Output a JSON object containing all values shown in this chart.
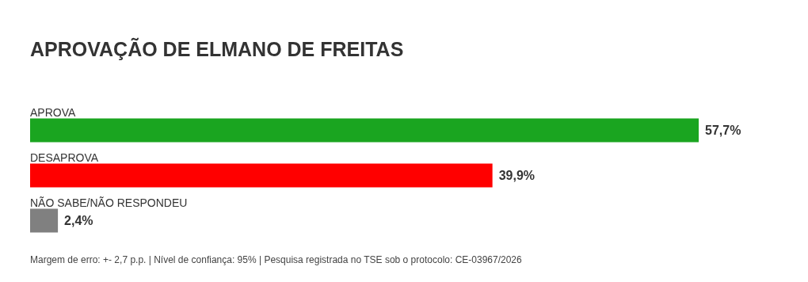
{
  "chart_data": {
    "type": "bar",
    "orientation": "horizontal",
    "title": "APROVAÇÃO DE ELMANO DE FREITAS",
    "categories": [
      "APROVA",
      "DESAPROVA",
      "NÃO SABE/NÃO RESPONDEU"
    ],
    "values": [
      57.7,
      39.9,
      2.4
    ],
    "colors": [
      "#1aa520",
      "#ff0000",
      "#808080"
    ],
    "value_labels": [
      "57,7%",
      "39,9%",
      "2,4%"
    ],
    "legend": false,
    "annotations": [
      "Margem de erro: +- 2,7 p.p. | Nível de confiança: 95% | Pesquisa registrada no TSE sob o protocolo: CE-03967/2026"
    ]
  }
}
